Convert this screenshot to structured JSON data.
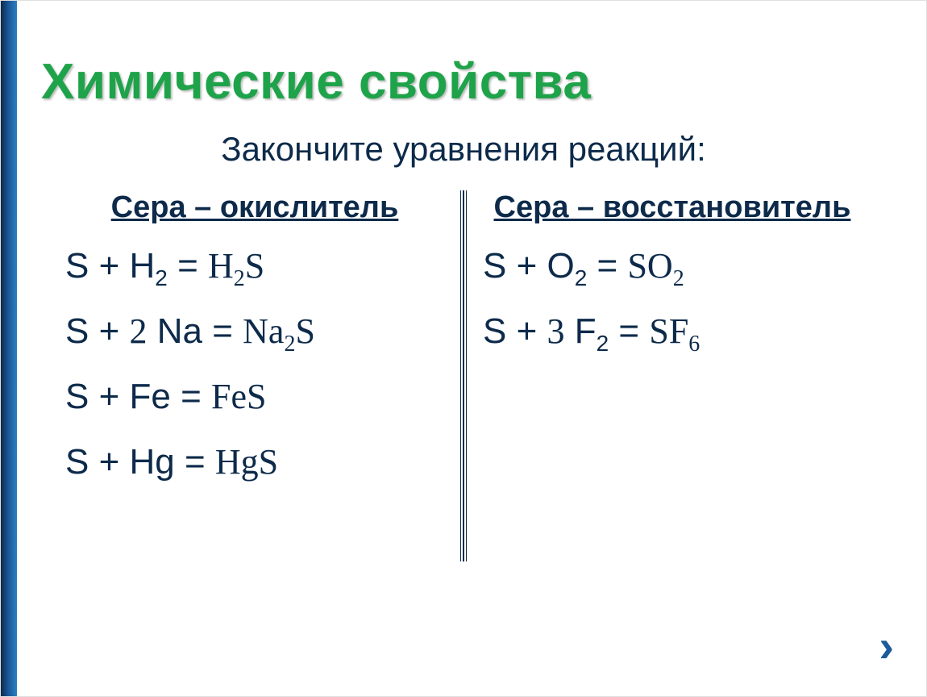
{
  "title": "Химические свойства",
  "subtitle": "Закончите уравнения реакций:",
  "columns": {
    "left": {
      "header": "Сера – окислитель",
      "equations": [
        {
          "lhs": "S +   H<sub>2</sub> =",
          "rhs": "H<sub>2</sub>S"
        },
        {
          "lhs": "S + <span class='serif'>2</span> Na =",
          "rhs": "Na<sub>2</sub>S"
        },
        {
          "lhs": "S +   Fe =",
          "rhs": "FeS"
        },
        {
          "lhs": "S +   Hg =",
          "rhs": "HgS"
        }
      ]
    },
    "right": {
      "header": "Сера – восстановитель",
      "equations": [
        {
          "lhs": "S +   O<sub>2</sub> =",
          "rhs": "SO<sub>2</sub>"
        },
        {
          "lhs": "S + <span class='serif'>3</span> F<sub>2</sub> =",
          "rhs": "SF<sub>6</sub>"
        }
      ]
    }
  },
  "colors": {
    "title": "#1fa34a",
    "text": "#0d2a4a",
    "accent_gradient": [
      "#0d2a4a",
      "#1b5a9c",
      "#2d7fc1"
    ],
    "background": "#ffffff"
  },
  "typography": {
    "title_fontsize": 62,
    "subtitle_fontsize": 42,
    "header_fontsize": 38,
    "equation_fontsize": 44,
    "subscript_fontsize": 28
  },
  "next_arrow_glyph": "›"
}
